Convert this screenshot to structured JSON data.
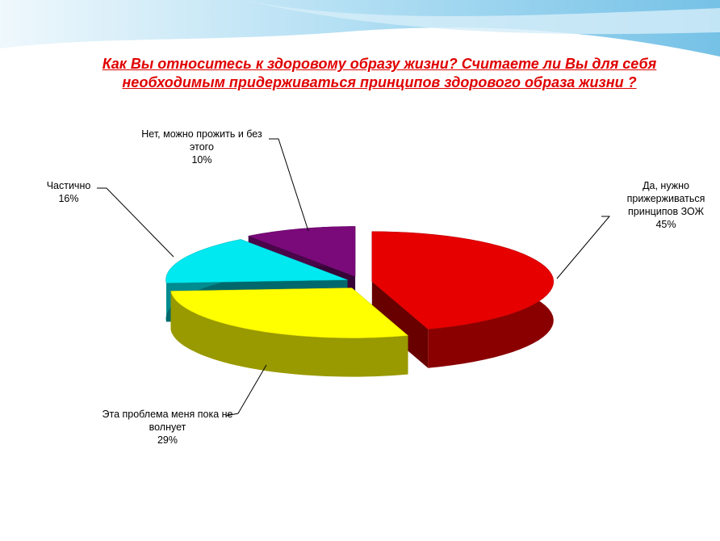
{
  "chart_data": {
    "type": "pie",
    "title": "Как Вы относитесь к здоровому образу жизни? Считаете ли Вы для себя необходимым придерживаться принципов здорового образа жизни ?",
    "categories": [
      "Да, нужно прижерживаться принципов ЗОЖ",
      "Эта проблема меня пока не волнует",
      "Частично",
      "Нет, можно прожить и без этого"
    ],
    "values": [
      45,
      29,
      16,
      10
    ],
    "value_labels": [
      "45%",
      "29%",
      "16%",
      "10%"
    ],
    "colors": [
      "#e60000",
      "#ffff00",
      "#00e8f0",
      "#7a0a7a"
    ]
  }
}
